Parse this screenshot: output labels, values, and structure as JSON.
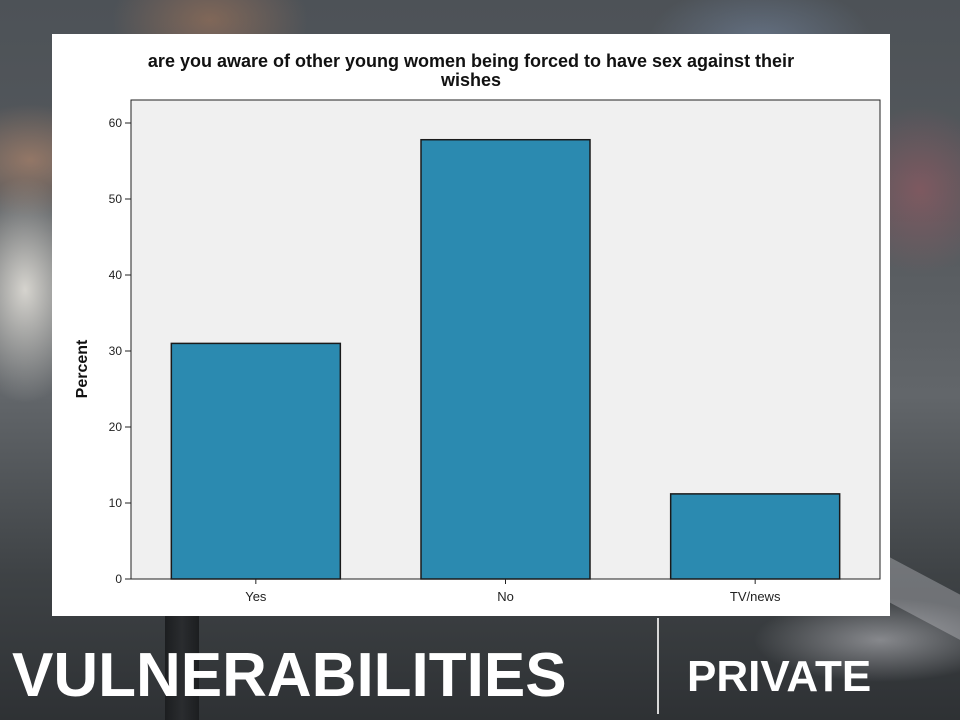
{
  "chart_data": {
    "type": "bar",
    "title_lines": [
      "are you aware of other young women being forced to have sex against their",
      "wishes"
    ],
    "xlabel": "",
    "ylabel": "Percent",
    "categories": [
      "Yes",
      "No",
      "TV/news"
    ],
    "values": [
      31,
      57.8,
      11.2
    ],
    "ylim": [
      0,
      60
    ],
    "yticks": [
      0,
      10,
      20,
      30,
      40,
      50,
      60
    ],
    "grid": false,
    "bar_color": "#2b8ab0",
    "plot_background": "#f0f0f0"
  },
  "footer": {
    "title": "VULNERABILITIES",
    "section": "PRIVATE"
  }
}
